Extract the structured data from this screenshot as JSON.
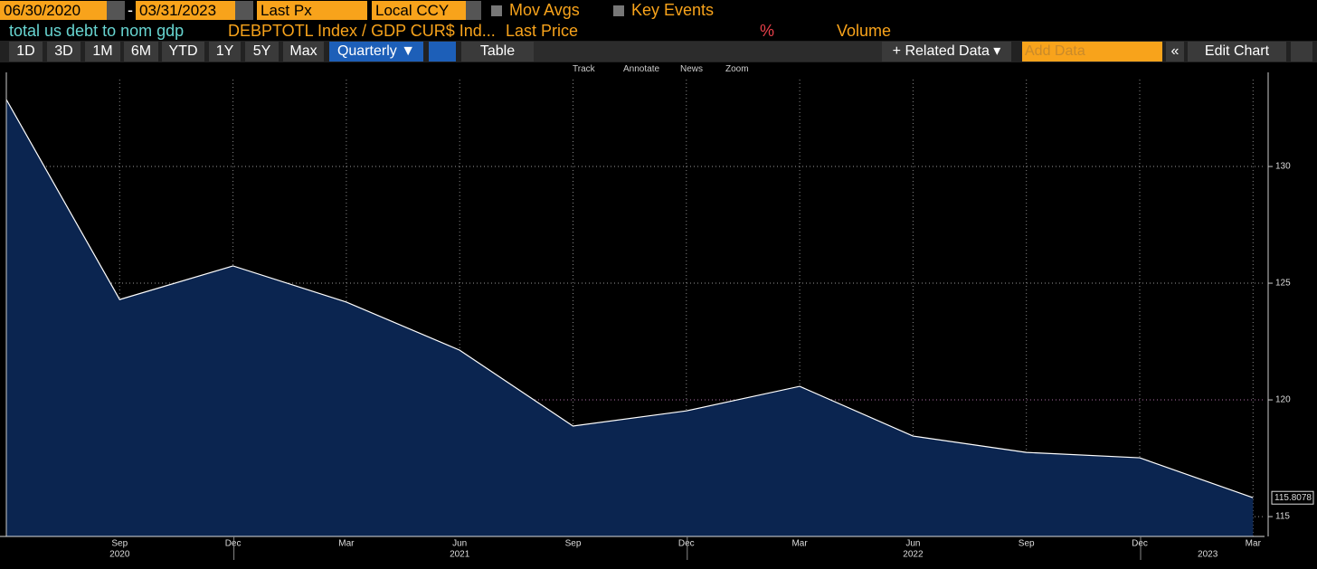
{
  "toolbar": {
    "start_date": "06/30/2020",
    "dash": "-",
    "end_date": "03/31/2023",
    "price_field": "Last Px",
    "currency": "Local CCY",
    "mov_avgs": "Mov Avgs",
    "key_events": "Key Events"
  },
  "legend_row": {
    "name": "total us debt to nom gdp",
    "security": "DEBPTOTL Index / GDP CUR$ Ind...",
    "field": "Last Price",
    "percent": "%",
    "volume": "Volume"
  },
  "buttons": [
    "1D",
    "3D",
    "1M",
    "6M",
    "YTD",
    "1Y",
    "5Y",
    "Max"
  ],
  "period": "Quarterly ▼",
  "table": "Table",
  "related_data": "+ Related Data ▾",
  "add_data": "Add Data",
  "collapse": "«",
  "edit_chart": "Edit Chart",
  "tools": [
    "Track",
    "Annotate",
    "News",
    "Zoom"
  ],
  "chart_data": {
    "type": "area",
    "title": "total us debt to nom gdp",
    "categories": [
      null,
      "Sep",
      "Dec",
      "Mar",
      "Jun",
      "Sep",
      "Dec",
      "Mar",
      "Jun",
      "Sep",
      "Dec",
      "Mar"
    ],
    "years": [
      "2020",
      "2021",
      "2022",
      "2023"
    ],
    "values": [
      132.87,
      124.3,
      125.74,
      124.19,
      122.13,
      118.88,
      119.53,
      120.58,
      118.45,
      117.75,
      117.52,
      115.8078
    ],
    "color": "#ffffff",
    "fill": "#0b2550",
    "ylim": [
      114.15,
      134.11
    ],
    "yticks": [
      115,
      120,
      125,
      130
    ],
    "grid": true
  }
}
